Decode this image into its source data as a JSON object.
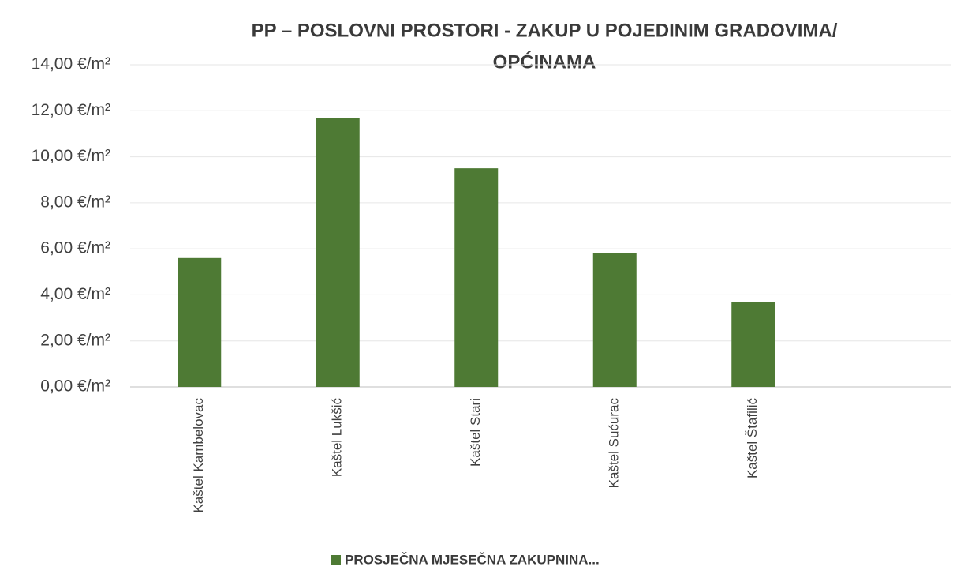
{
  "chart_data": {
    "type": "bar",
    "title": [
      "PP – POSLOVNI PROSTORI - ZAKUP U POJEDINIM GRADOVIMA/",
      "OPĆINAMA"
    ],
    "categories": [
      "Kaštel Kambelovac",
      "Kaštel Lukšić",
      "Kaštel Stari",
      "Kaštel Sućurac",
      "Kaštel Štafilić"
    ],
    "series": [
      {
        "name": "PROSJEČNA MJESEČNA ZAKUPNINA...",
        "color": "#4e7a34",
        "values": [
          5.6,
          11.7,
          9.5,
          5.8,
          3.7
        ]
      }
    ],
    "ylim": [
      0,
      14
    ],
    "yticks": [
      {
        "value": 0,
        "label": "0,00 €/m²"
      },
      {
        "value": 2,
        "label": "2,00 €/m²"
      },
      {
        "value": 4,
        "label": "4,00 €/m²"
      },
      {
        "value": 6,
        "label": "6,00 €/m²"
      },
      {
        "value": 8,
        "label": "8,00 €/m²"
      },
      {
        "value": 10,
        "label": "10,00 €/m²"
      },
      {
        "value": 12,
        "label": "12,00 €/m²"
      },
      {
        "value": 14,
        "label": "14,00 €/m²"
      }
    ],
    "grid": true,
    "legend": "bottom"
  }
}
